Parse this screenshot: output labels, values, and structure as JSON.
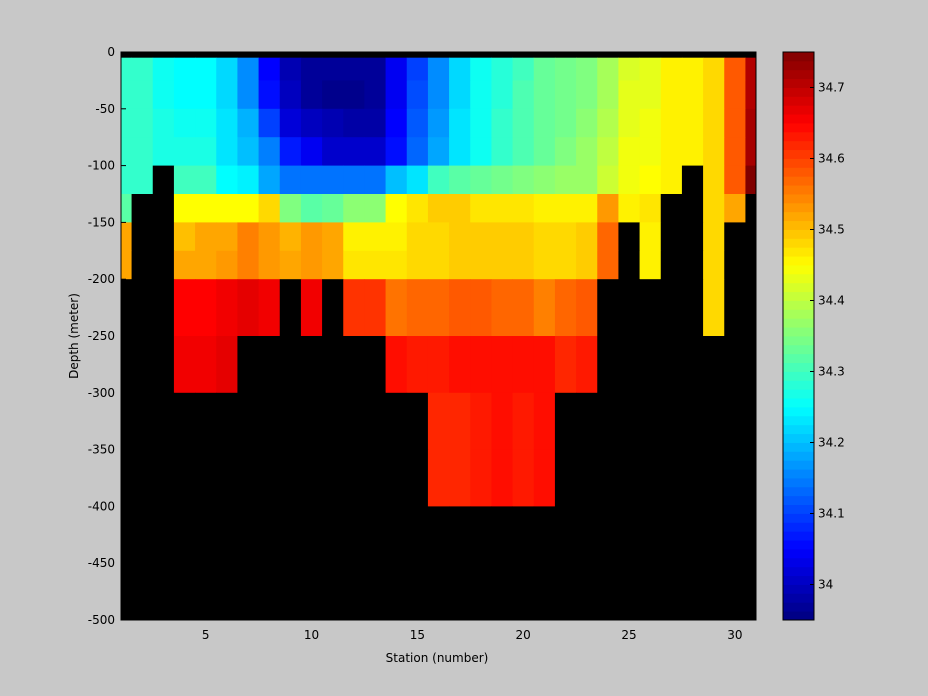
{
  "chart_data": {
    "type": "heatmap",
    "title": "",
    "xlabel": "Station (number)",
    "ylabel": "Depth (meter)",
    "xlim": [
      1,
      31
    ],
    "ylim": [
      -500,
      0
    ],
    "xticks": [
      5,
      10,
      15,
      20,
      25,
      30
    ],
    "yticks": [
      0,
      -50,
      -100,
      -150,
      -200,
      -250,
      -300,
      -350,
      -400,
      -450,
      -500
    ],
    "colorbar": {
      "clim": [
        33.95,
        34.75
      ],
      "ticks": [
        34,
        34.1,
        34.2,
        34.3,
        34.4,
        34.5,
        34.6,
        34.7
      ],
      "colormap": "jet",
      "no_data_color": "#000000",
      "background_color": "#c8c8c8"
    },
    "stations": [
      1,
      2,
      3,
      4,
      5,
      6,
      7,
      8,
      9,
      10,
      11,
      12,
      13,
      14,
      15,
      16,
      17,
      18,
      19,
      20,
      21,
      22,
      23,
      24,
      25,
      26,
      27,
      28,
      29,
      30,
      31
    ],
    "depth_edges": [
      0,
      -5,
      -25,
      -50,
      -75,
      -100,
      -125,
      -150,
      -175,
      -200,
      -250,
      -300,
      -350,
      -400,
      -450,
      -500
    ],
    "salinity": [
      [
        null,
        null,
        null,
        null,
        null,
        null,
        null,
        null,
        null,
        null,
        null,
        null,
        null,
        null,
        null,
        null,
        null,
        null,
        null,
        null,
        null,
        null,
        null,
        null,
        null,
        null,
        null,
        null,
        null,
        null,
        null
      ],
      [
        34.29,
        34.29,
        34.26,
        34.25,
        34.25,
        34.22,
        34.16,
        34.05,
        33.99,
        33.97,
        33.97,
        33.97,
        33.97,
        34.04,
        34.1,
        34.16,
        34.22,
        34.26,
        34.28,
        34.3,
        34.33,
        34.34,
        34.35,
        34.38,
        34.42,
        34.43,
        34.46,
        34.46,
        34.48,
        34.58,
        34.71
      ],
      [
        34.29,
        34.29,
        34.26,
        34.25,
        34.25,
        34.22,
        34.16,
        34.06,
        34.0,
        33.97,
        33.96,
        33.96,
        33.97,
        34.04,
        34.11,
        34.16,
        34.22,
        34.26,
        34.28,
        34.31,
        34.33,
        34.34,
        34.35,
        34.38,
        34.43,
        34.43,
        34.46,
        34.46,
        34.48,
        34.58,
        34.71
      ],
      [
        34.29,
        34.29,
        34.27,
        34.26,
        34.26,
        34.23,
        34.19,
        34.1,
        34.02,
        34.0,
        33.99,
        33.98,
        33.98,
        34.05,
        34.12,
        34.17,
        34.23,
        34.26,
        34.29,
        34.31,
        34.33,
        34.34,
        34.36,
        34.39,
        34.43,
        34.44,
        34.46,
        34.46,
        34.48,
        34.58,
        34.72
      ],
      [
        34.29,
        34.29,
        34.27,
        34.27,
        34.27,
        34.23,
        34.2,
        34.15,
        34.07,
        34.04,
        34.01,
        34.01,
        34.01,
        34.06,
        34.13,
        34.18,
        34.23,
        34.26,
        34.29,
        34.31,
        34.33,
        34.35,
        34.37,
        34.4,
        34.44,
        34.44,
        34.46,
        34.46,
        34.48,
        34.58,
        34.72
      ],
      [
        34.29,
        34.29,
        null,
        34.3,
        34.3,
        34.25,
        34.24,
        34.18,
        34.14,
        34.14,
        34.14,
        34.14,
        34.14,
        34.2,
        34.23,
        34.3,
        34.32,
        34.33,
        34.34,
        34.35,
        34.36,
        34.37,
        34.37,
        34.41,
        34.44,
        34.45,
        34.46,
        null,
        34.48,
        34.58,
        34.75
      ],
      [
        34.32,
        null,
        null,
        34.45,
        34.45,
        34.45,
        34.45,
        34.48,
        34.35,
        34.32,
        34.33,
        34.36,
        34.36,
        34.45,
        34.47,
        34.49,
        34.49,
        34.47,
        34.47,
        34.47,
        34.46,
        34.46,
        34.46,
        34.53,
        34.46,
        34.47,
        null,
        null,
        34.48,
        34.52,
        null
      ],
      [
        34.52,
        null,
        null,
        34.5,
        34.52,
        34.52,
        34.55,
        34.53,
        34.51,
        34.53,
        34.52,
        34.46,
        34.46,
        34.46,
        34.48,
        34.48,
        34.49,
        34.49,
        34.49,
        34.49,
        34.48,
        34.48,
        34.49,
        34.57,
        null,
        34.46,
        null,
        null,
        34.48,
        null,
        null
      ],
      [
        34.52,
        null,
        null,
        34.52,
        34.52,
        34.53,
        34.55,
        34.53,
        34.52,
        34.53,
        34.52,
        34.47,
        34.47,
        34.47,
        34.48,
        34.48,
        34.49,
        34.49,
        34.49,
        34.49,
        34.48,
        34.48,
        34.49,
        34.57,
        null,
        34.46,
        null,
        null,
        34.48,
        null,
        null
      ],
      [
        null,
        null,
        null,
        34.65,
        34.65,
        34.66,
        34.67,
        34.66,
        null,
        34.66,
        null,
        34.61,
        34.61,
        34.56,
        34.57,
        34.57,
        34.58,
        34.58,
        34.57,
        34.57,
        34.55,
        34.57,
        34.58,
        null,
        null,
        null,
        null,
        null,
        34.48,
        null,
        null
      ],
      [
        null,
        null,
        null,
        34.66,
        34.66,
        34.67,
        null,
        null,
        null,
        null,
        null,
        null,
        null,
        34.64,
        34.63,
        34.63,
        34.64,
        34.64,
        34.64,
        34.64,
        34.64,
        34.62,
        34.63,
        null,
        null,
        null,
        null,
        null,
        null,
        null,
        null
      ],
      [
        null,
        null,
        null,
        null,
        null,
        null,
        null,
        null,
        null,
        null,
        null,
        null,
        null,
        null,
        null,
        34.62,
        34.62,
        34.63,
        34.64,
        34.63,
        34.64,
        null,
        null,
        null,
        null,
        null,
        null,
        null,
        null,
        null,
        null
      ],
      [
        null,
        null,
        null,
        null,
        null,
        null,
        null,
        null,
        null,
        null,
        null,
        null,
        null,
        null,
        null,
        34.62,
        34.62,
        34.63,
        34.64,
        34.63,
        34.64,
        null,
        null,
        null,
        null,
        null,
        null,
        null,
        null,
        null,
        null
      ],
      [
        null,
        null,
        null,
        null,
        null,
        null,
        null,
        null,
        null,
        null,
        null,
        null,
        null,
        null,
        null,
        null,
        null,
        null,
        null,
        null,
        null,
        null,
        null,
        null,
        null,
        null,
        null,
        null,
        null,
        null,
        null
      ],
      [
        null,
        null,
        null,
        null,
        null,
        null,
        null,
        null,
        null,
        null,
        null,
        null,
        null,
        null,
        null,
        null,
        null,
        null,
        null,
        null,
        null,
        null,
        null,
        null,
        null,
        null,
        null,
        null,
        null,
        null,
        null
      ]
    ]
  }
}
